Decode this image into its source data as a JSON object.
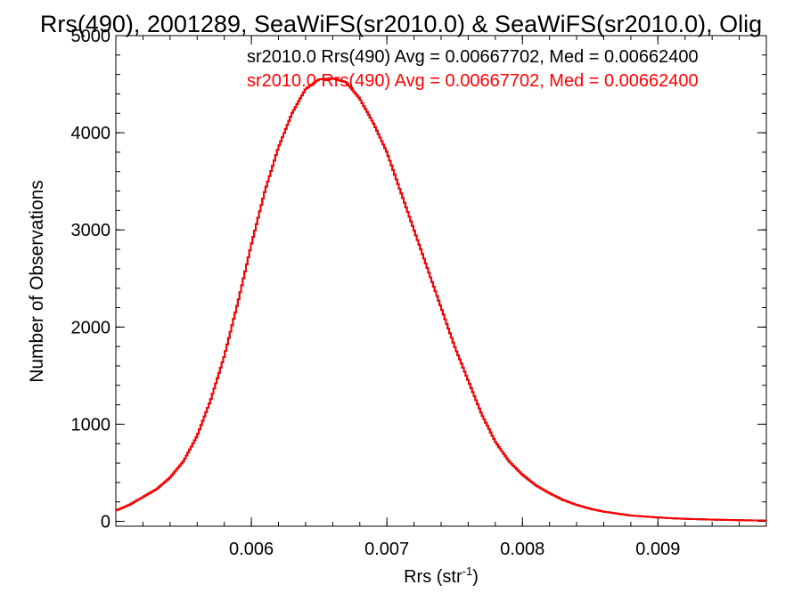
{
  "chart_data": {
    "type": "line",
    "title": "Rrs(490), 2001289, SeaWiFS(sr2010.0) & SeaWiFS(sr2010.0), Olig",
    "xlabel": "Rrs (str",
    "xlabel_sup": "-1",
    "xlabel_close": ")",
    "ylabel": "Number of Observations",
    "xlim": [
      0.005,
      0.0098
    ],
    "ylim": [
      -50,
      5000
    ],
    "x_ticks": [
      0.006,
      0.007,
      0.008,
      0.009
    ],
    "x_tick_labels": [
      "0.006",
      "0.007",
      "0.008",
      "0.009"
    ],
    "y_ticks": [
      0,
      1000,
      2000,
      3000,
      4000,
      5000
    ],
    "y_tick_labels": [
      "0",
      "1000",
      "2000",
      "3000",
      "4000",
      "5000"
    ],
    "grid": false,
    "annotations": [
      {
        "text": "sr2010.0 Rrs(490) Avg = 0.00667702, Med = 0.00662400",
        "color": "#000000"
      },
      {
        "text": "sr2010.0 Rrs(490) Avg = 0.00667702, Med = 0.00662400",
        "color": "#ff0000"
      }
    ],
    "series": [
      {
        "color": "#000000",
        "x": [
          0.005,
          0.0051,
          0.0052,
          0.0053,
          0.0054,
          0.0055,
          0.0056,
          0.0057,
          0.0058,
          0.0059,
          0.006,
          0.0061,
          0.0062,
          0.0063,
          0.0064,
          0.0065,
          0.0066,
          0.0067,
          0.0068,
          0.0069,
          0.007,
          0.0071,
          0.0072,
          0.0073,
          0.0074,
          0.0075,
          0.0076,
          0.0077,
          0.0078,
          0.0079,
          0.008,
          0.0081,
          0.0082,
          0.0083,
          0.0084,
          0.0085,
          0.0086,
          0.0087,
          0.0088,
          0.0089,
          0.009,
          0.0091,
          0.0092,
          0.0093,
          0.0094,
          0.0095,
          0.0096,
          0.0097,
          0.0098
        ],
        "y": [
          110,
          170,
          250,
          330,
          450,
          620,
          880,
          1250,
          1700,
          2250,
          2850,
          3400,
          3850,
          4200,
          4450,
          4550,
          4560,
          4520,
          4350,
          4100,
          3800,
          3400,
          3000,
          2600,
          2200,
          1800,
          1450,
          1100,
          820,
          620,
          480,
          370,
          290,
          220,
          170,
          130,
          100,
          80,
          60,
          50,
          40,
          32,
          26,
          22,
          18,
          15,
          12,
          10,
          8
        ]
      },
      {
        "color": "#ff0000",
        "x": [
          0.005,
          0.0051,
          0.0052,
          0.0053,
          0.0054,
          0.0055,
          0.0056,
          0.0057,
          0.0058,
          0.0059,
          0.006,
          0.0061,
          0.0062,
          0.0063,
          0.0064,
          0.0065,
          0.0066,
          0.0067,
          0.0068,
          0.0069,
          0.007,
          0.0071,
          0.0072,
          0.0073,
          0.0074,
          0.0075,
          0.0076,
          0.0077,
          0.0078,
          0.0079,
          0.008,
          0.0081,
          0.0082,
          0.0083,
          0.0084,
          0.0085,
          0.0086,
          0.0087,
          0.0088,
          0.0089,
          0.009,
          0.0091,
          0.0092,
          0.0093,
          0.0094,
          0.0095,
          0.0096,
          0.0097,
          0.0098
        ],
        "y": [
          110,
          170,
          250,
          330,
          450,
          620,
          880,
          1250,
          1700,
          2250,
          2850,
          3400,
          3850,
          4200,
          4450,
          4550,
          4560,
          4520,
          4350,
          4100,
          3800,
          3400,
          3000,
          2600,
          2200,
          1800,
          1450,
          1100,
          820,
          620,
          480,
          370,
          290,
          220,
          170,
          130,
          100,
          80,
          60,
          50,
          40,
          32,
          26,
          22,
          18,
          15,
          12,
          10,
          8
        ]
      }
    ]
  }
}
